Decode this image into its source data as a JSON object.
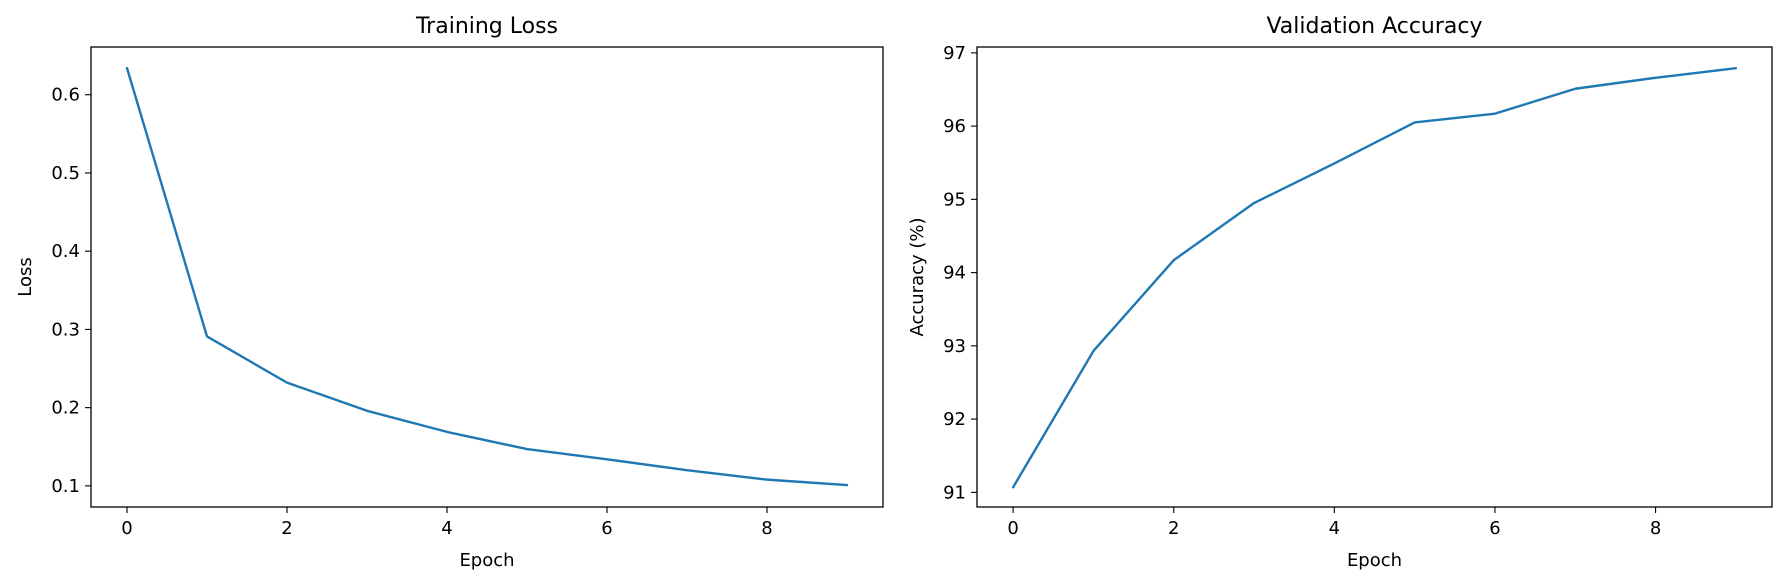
{
  "chart_data": [
    {
      "type": "line",
      "title": "Training Loss",
      "xlabel": "Epoch",
      "ylabel": "Loss",
      "xlim": [
        -0.45,
        9.45
      ],
      "ylim": [
        0.073,
        0.661
      ],
      "xticks": [
        0,
        2,
        4,
        6,
        8
      ],
      "yticks": [
        0.1,
        0.2,
        0.3,
        0.4,
        0.5,
        0.6
      ],
      "ytick_labels": [
        "0.1",
        "0.2",
        "0.3",
        "0.4",
        "0.5",
        "0.6"
      ],
      "grid": false,
      "x": [
        0,
        1,
        2,
        3,
        4,
        5,
        6,
        7,
        8,
        9
      ],
      "series": [
        {
          "color": "#1f77b4",
          "values": [
            0.634,
            0.291,
            0.232,
            0.196,
            0.169,
            0.147,
            0.134,
            0.12,
            0.108,
            0.101
          ]
        }
      ]
    },
    {
      "type": "line",
      "title": "Validation Accuracy",
      "xlabel": "Epoch",
      "ylabel": "Accuracy (%)",
      "xlim": [
        -0.45,
        9.45
      ],
      "ylim": [
        90.8,
        97.08
      ],
      "xticks": [
        0,
        2,
        4,
        6,
        8
      ],
      "yticks": [
        91,
        92,
        93,
        94,
        95,
        96,
        97
      ],
      "ytick_labels": [
        "91",
        "92",
        "93",
        "94",
        "95",
        "96",
        "97"
      ],
      "grid": false,
      "x": [
        0,
        1,
        2,
        3,
        4,
        5,
        6,
        7,
        8,
        9
      ],
      "series": [
        {
          "color": "#1f77b4",
          "values": [
            91.07,
            92.93,
            94.17,
            94.95,
            95.49,
            96.05,
            96.17,
            96.51,
            96.66,
            96.79
          ]
        }
      ]
    }
  ]
}
